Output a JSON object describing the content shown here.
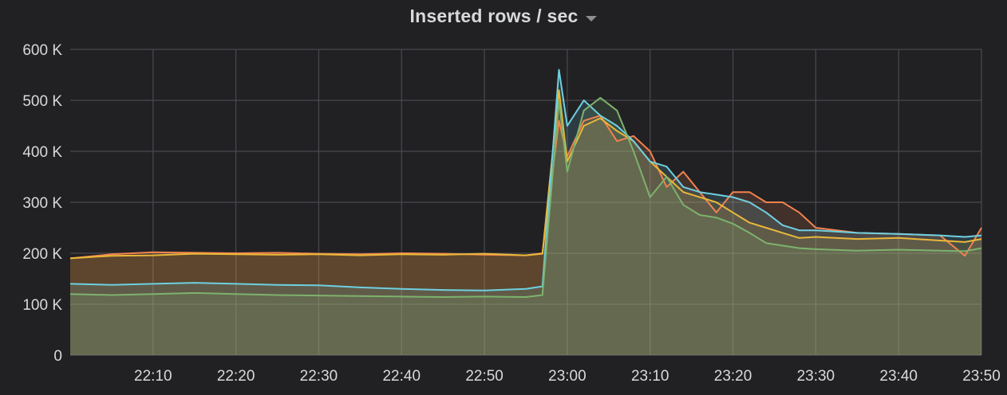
{
  "panel": {
    "title": "Inserted rows / sec"
  },
  "chart_data": {
    "type": "line",
    "title": "Inserted rows / sec",
    "xlabel": "",
    "ylabel": "",
    "ylim": [
      0,
      600000
    ],
    "xlim": [
      "22:00",
      "23:50"
    ],
    "grid": true,
    "fill": true,
    "y_ticks": [
      {
        "value": 0,
        "label": "0"
      },
      {
        "value": 100000,
        "label": "100 K"
      },
      {
        "value": 200000,
        "label": "200 K"
      },
      {
        "value": 300000,
        "label": "300 K"
      },
      {
        "value": 400000,
        "label": "400 K"
      },
      {
        "value": 500000,
        "label": "500 K"
      },
      {
        "value": 600000,
        "label": "600 K"
      }
    ],
    "x_ticks": [
      "22:10",
      "22:20",
      "22:30",
      "22:40",
      "22:50",
      "23:00",
      "23:10",
      "23:20",
      "23:30",
      "23:40",
      "23:50"
    ],
    "x": [
      "22:00",
      "22:05",
      "22:10",
      "22:15",
      "22:20",
      "22:25",
      "22:30",
      "22:35",
      "22:40",
      "22:45",
      "22:50",
      "22:55",
      "22:57",
      "22:59",
      "23:00",
      "23:02",
      "23:04",
      "23:06",
      "23:08",
      "23:10",
      "23:12",
      "23:14",
      "23:16",
      "23:18",
      "23:20",
      "23:22",
      "23:24",
      "23:26",
      "23:28",
      "23:30",
      "23:35",
      "23:40",
      "23:45",
      "23:48",
      "23:50"
    ],
    "series": [
      {
        "color": "#f2834e",
        "values": [
          190000,
          198000,
          202000,
          201000,
          200000,
          201000,
          199000,
          198000,
          200000,
          199000,
          197000,
          196000,
          200000,
          460000,
          390000,
          460000,
          470000,
          420000,
          430000,
          400000,
          330000,
          360000,
          320000,
          280000,
          320000,
          320000,
          300000,
          300000,
          280000,
          250000,
          240000,
          238000,
          235000,
          195000,
          250000
        ]
      },
      {
        "color": "#eab839",
        "values": [
          190000,
          195000,
          196000,
          199000,
          198000,
          197000,
          198000,
          196000,
          198000,
          197000,
          199000,
          196000,
          199000,
          520000,
          380000,
          450000,
          465000,
          440000,
          420000,
          380000,
          350000,
          320000,
          310000,
          300000,
          280000,
          260000,
          250000,
          240000,
          230000,
          232000,
          228000,
          230000,
          225000,
          222000,
          228000
        ]
      },
      {
        "color": "#6ed0e0",
        "values": [
          140000,
          138000,
          140000,
          142000,
          140000,
          138000,
          137000,
          133000,
          130000,
          128000,
          127000,
          130000,
          135000,
          560000,
          450000,
          500000,
          470000,
          450000,
          420000,
          380000,
          370000,
          330000,
          320000,
          315000,
          310000,
          300000,
          280000,
          255000,
          245000,
          245000,
          240000,
          238000,
          235000,
          232000,
          235000
        ]
      },
      {
        "color": "#7eb26d",
        "values": [
          120000,
          118000,
          120000,
          122000,
          120000,
          118000,
          117000,
          116000,
          115000,
          114000,
          115000,
          114000,
          118000,
          500000,
          360000,
          480000,
          505000,
          480000,
          400000,
          310000,
          350000,
          295000,
          275000,
          270000,
          258000,
          240000,
          220000,
          215000,
          210000,
          208000,
          205000,
          207000,
          205000,
          204000,
          210000
        ]
      }
    ]
  }
}
